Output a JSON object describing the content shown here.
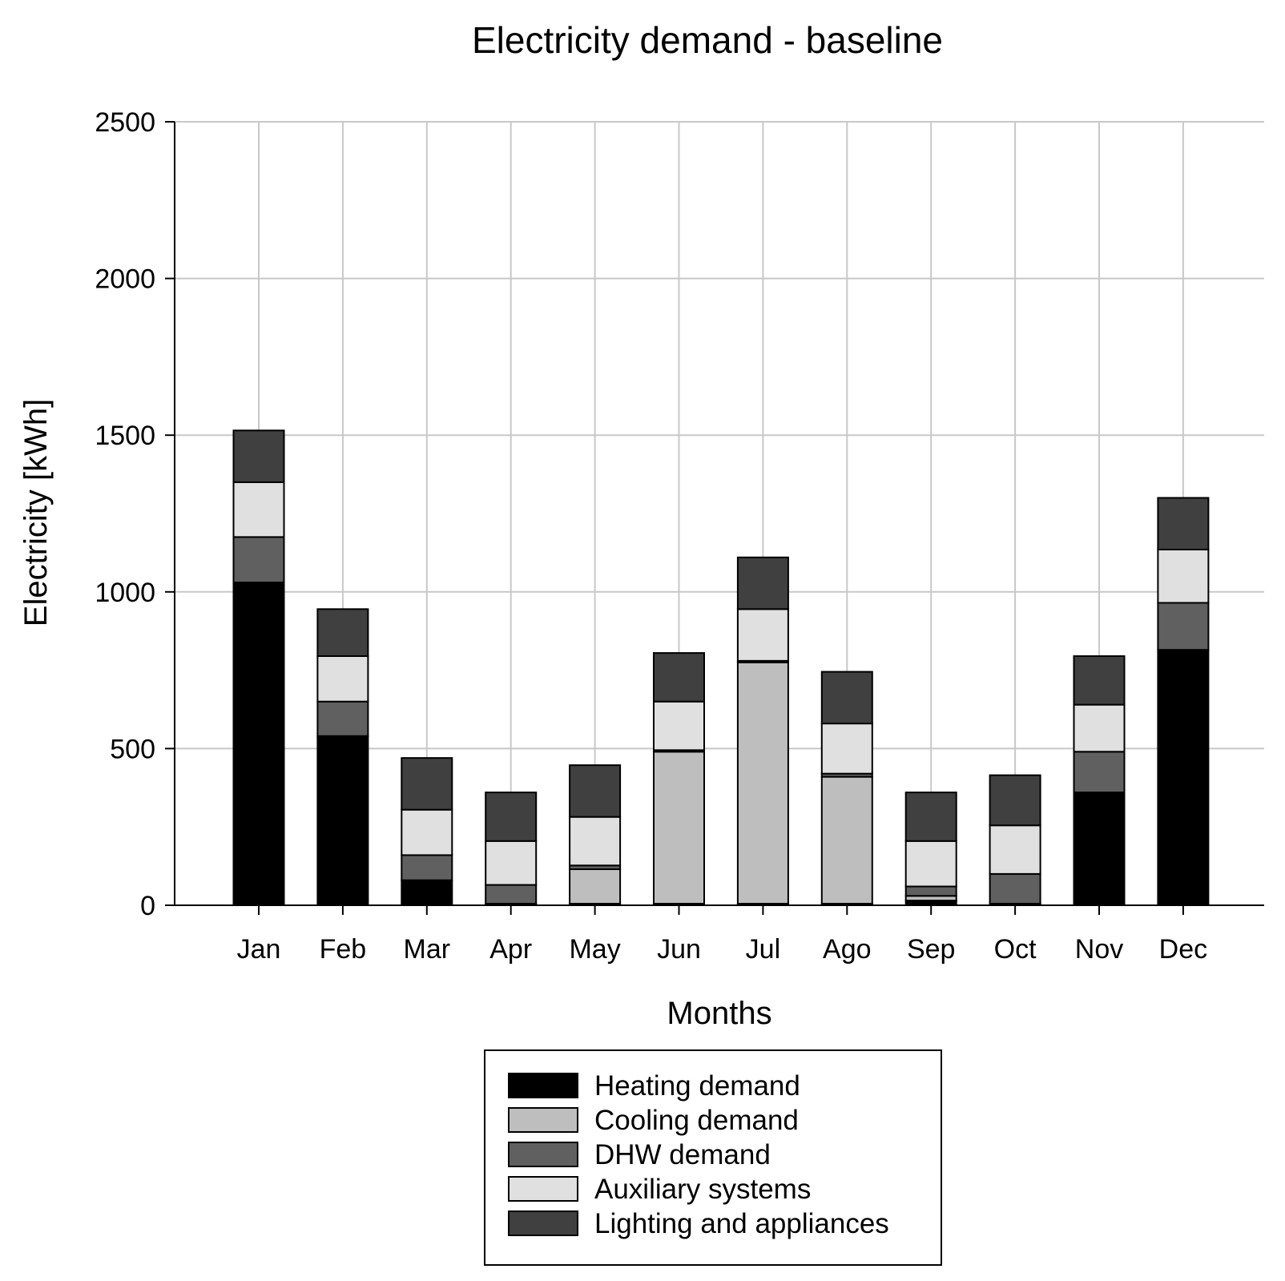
{
  "chart_data": {
    "type": "bar",
    "stacked": true,
    "title": "Electricity demand - baseline",
    "xlabel": "Months",
    "ylabel": "Electricity [kWh]",
    "ylim": [
      0,
      2500
    ],
    "yticks": [
      "0",
      "500",
      "1000",
      "1500",
      "2000",
      "2500"
    ],
    "grid": true,
    "legend_position": "bottom-center",
    "categories": [
      "Jan",
      "Feb",
      "Mar",
      "Apr",
      "May",
      "Jun",
      "Jul",
      "Ago",
      "Sep",
      "Oct",
      "Nov",
      "Dec"
    ],
    "series": [
      {
        "name": "Heating demand",
        "color": "#000000",
        "values": [
          1030,
          540,
          80,
          5,
          5,
          5,
          5,
          5,
          15,
          5,
          360,
          815
        ]
      },
      {
        "name": "Cooling demand",
        "color": "#bebebe",
        "values": [
          0,
          0,
          0,
          0,
          110,
          485,
          770,
          405,
          15,
          0,
          0,
          0
        ]
      },
      {
        "name": "DHW demand",
        "color": "#606060",
        "values": [
          145,
          110,
          80,
          60,
          12,
          5,
          5,
          10,
          30,
          95,
          130,
          150
        ]
      },
      {
        "name": "Auxiliary systems",
        "color": "#e0e0e0",
        "values": [
          175,
          145,
          145,
          140,
          155,
          155,
          165,
          160,
          145,
          155,
          150,
          170
        ]
      },
      {
        "name": "Lighting and appliances",
        "color": "#404040",
        "values": [
          165,
          150,
          165,
          155,
          165,
          155,
          165,
          165,
          155,
          160,
          155,
          165
        ]
      }
    ]
  }
}
